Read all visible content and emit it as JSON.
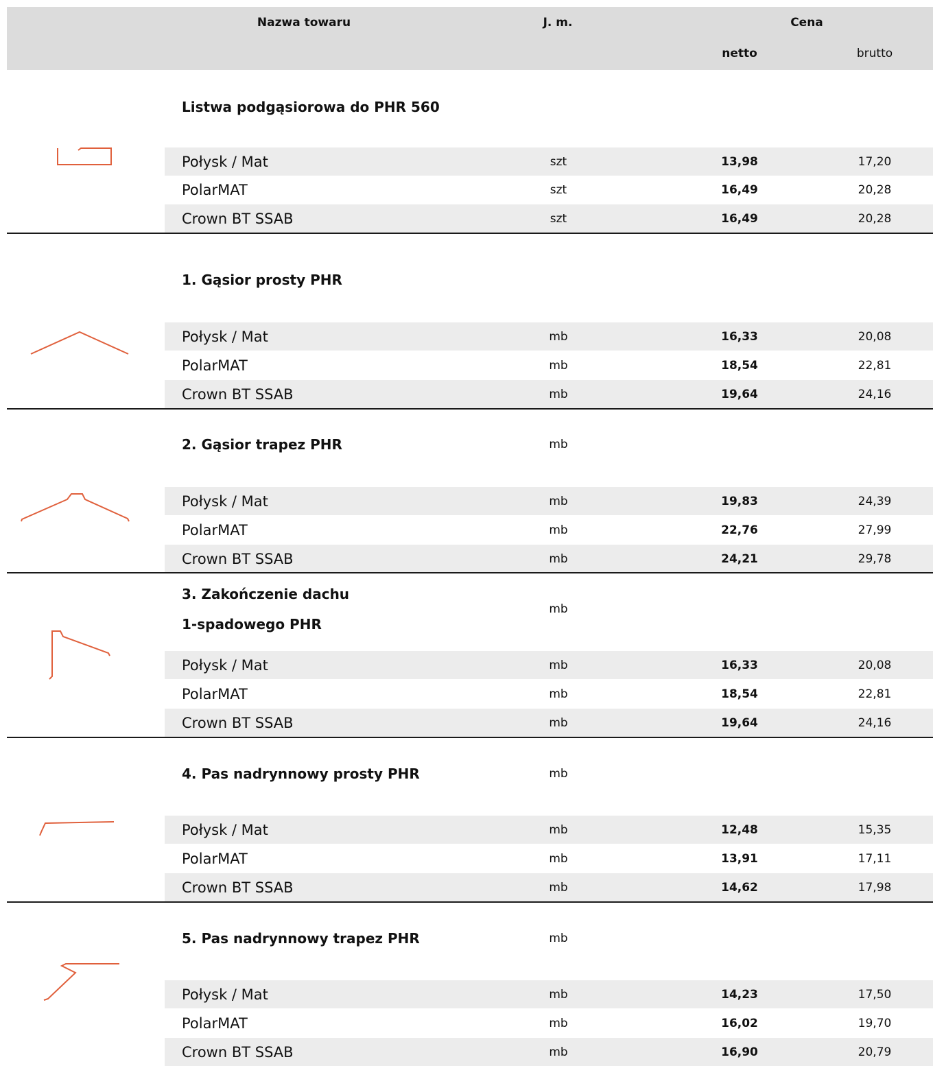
{
  "header": {
    "name": "Nazwa towaru",
    "unit": "J. m.",
    "price": "Cena",
    "netto": "netto",
    "brutto": "brutto"
  },
  "accent_color": "#e0603c",
  "sections": [
    {
      "title": "Listwa podgąsiorowa do PHR 560",
      "title_unit": "",
      "icon": "ridge-sub-strip-profile-icon",
      "rows": [
        {
          "name": "Połysk / Mat",
          "unit": "szt",
          "netto": "13,98",
          "brutto": "17,20"
        },
        {
          "name": "PolarMAT",
          "unit": "szt",
          "netto": "16,49",
          "brutto": "20,28"
        },
        {
          "name": "Crown BT SSAB",
          "unit": "szt",
          "netto": "16,49",
          "brutto": "20,28"
        }
      ]
    },
    {
      "title": "1. Gąsior prosty PHR",
      "title_unit": "",
      "icon": "straight-ridge-profile-icon",
      "rows": [
        {
          "name": "Połysk / Mat",
          "unit": "mb",
          "netto": "16,33",
          "brutto": "20,08"
        },
        {
          "name": "PolarMAT",
          "unit": "mb",
          "netto": "18,54",
          "brutto": "22,81"
        },
        {
          "name": "Crown BT SSAB",
          "unit": "mb",
          "netto": "19,64",
          "brutto": "24,16"
        }
      ]
    },
    {
      "title": "2. Gąsior trapez PHR",
      "title_unit": "mb",
      "icon": "trapezoid-ridge-profile-icon",
      "rows": [
        {
          "name": "Połysk / Mat",
          "unit": "mb",
          "netto": "19,83",
          "brutto": "24,39"
        },
        {
          "name": "PolarMAT",
          "unit": "mb",
          "netto": "22,76",
          "brutto": "27,99"
        },
        {
          "name": "Crown BT SSAB",
          "unit": "mb",
          "netto": "24,21",
          "brutto": "29,78"
        }
      ]
    },
    {
      "title": "3. Zakończenie dachu",
      "title_line2": "1-spadowego PHR",
      "title_unit": "mb",
      "icon": "mono-pitch-roof-end-profile-icon",
      "rows": [
        {
          "name": "Połysk / Mat",
          "unit": "mb",
          "netto": "16,33",
          "brutto": "20,08"
        },
        {
          "name": "PolarMAT",
          "unit": "mb",
          "netto": "18,54",
          "brutto": "22,81"
        },
        {
          "name": "Crown BT SSAB",
          "unit": "mb",
          "netto": "19,64",
          "brutto": "24,16"
        }
      ]
    },
    {
      "title": "4. Pas nadrynnowy prosty PHR",
      "title_unit": "mb",
      "icon": "straight-drip-edge-profile-icon",
      "rows": [
        {
          "name": "Połysk / Mat",
          "unit": "mb",
          "netto": "12,48",
          "brutto": "15,35"
        },
        {
          "name": "PolarMAT",
          "unit": "mb",
          "netto": "13,91",
          "brutto": "17,11"
        },
        {
          "name": "Crown BT SSAB",
          "unit": "mb",
          "netto": "14,62",
          "brutto": "17,98"
        }
      ]
    },
    {
      "title": "5. Pas nadrynnowy trapez PHR",
      "title_unit": "mb",
      "icon": "trapezoid-drip-edge-profile-icon",
      "rows": [
        {
          "name": "Połysk / Mat",
          "unit": "mb",
          "netto": "14,23",
          "brutto": "17,50"
        },
        {
          "name": "PolarMAT",
          "unit": "mb",
          "netto": "16,02",
          "brutto": "19,70"
        },
        {
          "name": "Crown BT SSAB",
          "unit": "mb",
          "netto": "16,90",
          "brutto": "20,79"
        }
      ]
    }
  ]
}
